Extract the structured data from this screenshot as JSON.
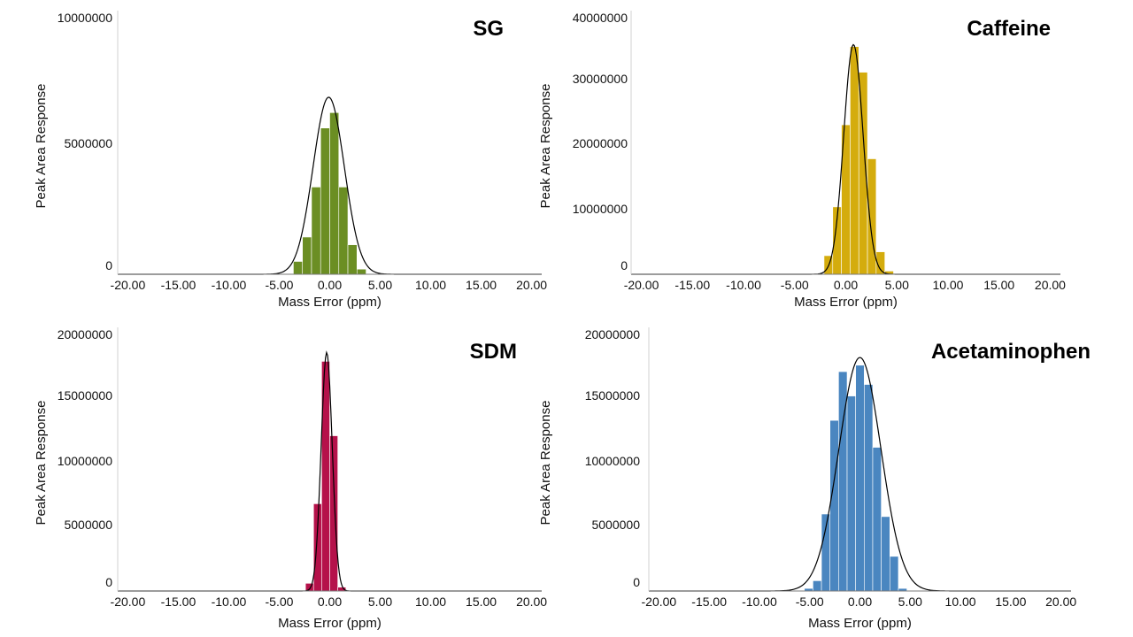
{
  "chart_data": [
    {
      "type": "bar",
      "title": "SG",
      "xlabel": "Mass Error (ppm)",
      "ylabel": "Peak Area Response",
      "color": "#6b8e23",
      "xlim": [
        -21,
        21
      ],
      "ylim": [
        0,
        10000000
      ],
      "x_ticks": [
        -20,
        -15,
        -10,
        -5,
        0,
        5,
        10,
        15,
        20
      ],
      "x_tick_labels": [
        "-20.00",
        "-15.00",
        "-10.00",
        "-5.00",
        "0.00",
        "5.00",
        "10.00",
        "15.00",
        "20.00"
      ],
      "y_ticks": [
        0,
        5000000,
        10000000
      ],
      "y_tick_labels": [
        "0",
        "5000000",
        "10000000"
      ],
      "bin_width": 0.9,
      "bins": [
        {
          "x": -4.05,
          "value": 20000
        },
        {
          "x": -3.15,
          "value": 500000
        },
        {
          "x": -2.25,
          "value": 1450000
        },
        {
          "x": -1.35,
          "value": 3400000
        },
        {
          "x": -0.45,
          "value": 5700000
        },
        {
          "x": 0.45,
          "value": 6300000
        },
        {
          "x": 1.35,
          "value": 3400000
        },
        {
          "x": 2.25,
          "value": 1150000
        },
        {
          "x": 3.15,
          "value": 200000
        }
      ],
      "fit": {
        "mean": -0.1,
        "sd": 1.55,
        "peak": 6900000
      }
    },
    {
      "type": "bar",
      "title": "Caffeine",
      "xlabel": "Mass Error (ppm)",
      "ylabel": "Peak Area Response",
      "color": "#d4ac0d",
      "xlim": [
        -21,
        21
      ],
      "ylim": [
        0,
        40000000
      ],
      "x_ticks": [
        -20,
        -15,
        -10,
        -5,
        0,
        5,
        10,
        15,
        20
      ],
      "x_tick_labels": [
        "-20.00",
        "-15.00",
        "-10.00",
        "-5.00",
        "0.00",
        "5.00",
        "10.00",
        "15.00",
        "20.00"
      ],
      "y_ticks": [
        0,
        10000000,
        20000000,
        30000000,
        40000000
      ],
      "y_tick_labels": [
        "0",
        "10000000",
        "20000000",
        "30000000",
        "40000000"
      ],
      "bin_width": 0.85,
      "bins": [
        {
          "x": -2.55,
          "value": 100000
        },
        {
          "x": -1.7,
          "value": 2900000
        },
        {
          "x": -0.85,
          "value": 10500000
        },
        {
          "x": 0.0,
          "value": 23300000
        },
        {
          "x": 0.85,
          "value": 35500000
        },
        {
          "x": 1.7,
          "value": 31500000
        },
        {
          "x": 2.55,
          "value": 18000000
        },
        {
          "x": 3.4,
          "value": 3500000
        },
        {
          "x": 4.25,
          "value": 500000
        }
      ],
      "fit": {
        "mean": 0.75,
        "sd": 0.95,
        "peak": 35800000
      }
    },
    {
      "type": "bar",
      "title": "SDM",
      "xlabel": "Mass Error (ppm)",
      "ylabel": "Peak Area Response",
      "color": "#b5114a",
      "xlim": [
        -21,
        21
      ],
      "ylim": [
        0,
        20000000
      ],
      "x_ticks": [
        -20,
        -15,
        -10,
        -5,
        0,
        5,
        10,
        15,
        20
      ],
      "x_tick_labels": [
        "-20.00",
        "-15.00",
        "-10.00",
        "-5.00",
        "0.00",
        "5.00",
        "10.00",
        "15.00",
        "20.00"
      ],
      "y_ticks": [
        0,
        5000000,
        10000000,
        15000000,
        20000000
      ],
      "y_tick_labels": [
        "0",
        "5000000",
        "10000000",
        "15000000",
        "20000000"
      ],
      "bin_width": 0.8,
      "bins": [
        {
          "x": -2.0,
          "value": 600000
        },
        {
          "x": -1.2,
          "value": 6800000
        },
        {
          "x": -0.4,
          "value": 17900000
        },
        {
          "x": 0.4,
          "value": 12100000
        },
        {
          "x": 1.2,
          "value": 300000
        }
      ],
      "fit": {
        "mean": -0.3,
        "sd": 0.55,
        "peak": 18600000
      }
    },
    {
      "type": "bar",
      "title": "Acetaminophen",
      "xlabel": "Mass Error (ppm)",
      "ylabel": "Peak Area Response",
      "color": "#4a86c0",
      "xlim": [
        -21,
        21
      ],
      "ylim": [
        0,
        20000000
      ],
      "x_ticks": [
        -20,
        -15,
        -10,
        -5,
        0,
        5,
        10,
        15,
        20
      ],
      "x_tick_labels": [
        "-20.00",
        "-15.00",
        "-10.00",
        "-5.00",
        "0.00",
        "5.00",
        "10.00",
        "15.00",
        "20.00"
      ],
      "y_ticks": [
        0,
        5000000,
        10000000,
        15000000,
        20000000
      ],
      "y_tick_labels": [
        "0",
        "5000000",
        "10000000",
        "15000000",
        "20000000"
      ],
      "bin_width": 0.85,
      "bins": [
        {
          "x": -5.1,
          "value": 200000
        },
        {
          "x": -4.25,
          "value": 800000
        },
        {
          "x": -3.4,
          "value": 6000000
        },
        {
          "x": -2.55,
          "value": 13300000
        },
        {
          "x": -1.7,
          "value": 17100000
        },
        {
          "x": -0.85,
          "value": 15200000
        },
        {
          "x": 0.0,
          "value": 17600000
        },
        {
          "x": 0.85,
          "value": 16100000
        },
        {
          "x": 1.7,
          "value": 11200000
        },
        {
          "x": 2.55,
          "value": 5800000
        },
        {
          "x": 3.4,
          "value": 2700000
        },
        {
          "x": 4.25,
          "value": 200000
        }
      ],
      "fit": {
        "mean": 0.0,
        "sd": 2.1,
        "peak": 18200000
      }
    }
  ]
}
